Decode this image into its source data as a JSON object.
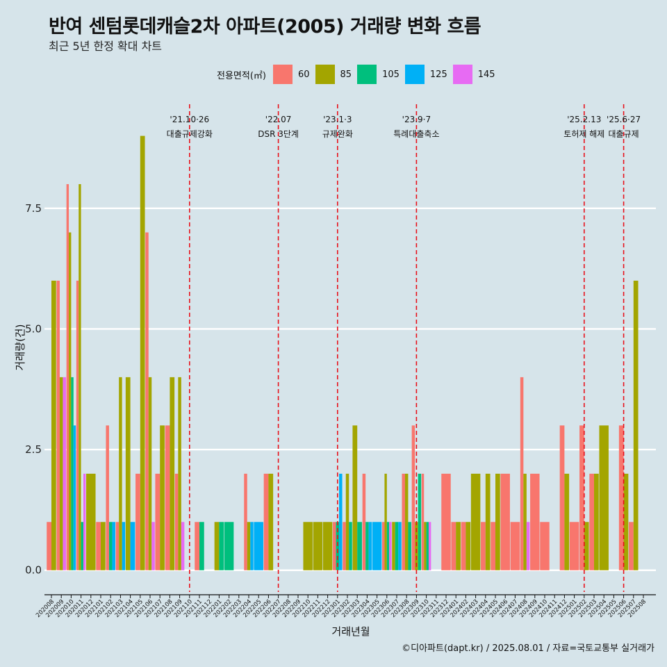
{
  "title": "반여 센텀롯데캐슬2차 아파트(2005) 거래량 변화 흐름",
  "subtitle": "최근 5년 한정 확대 차트",
  "caption": "©디아파트(dapt.kr) / 2025.08.01 / 자료=국토교통부 실거래가",
  "legend": {
    "title": "전용면적(㎡)",
    "items": [
      {
        "label": "60",
        "color": "#f8766d"
      },
      {
        "label": "85",
        "color": "#a3a500"
      },
      {
        "label": "105",
        "color": "#00bf7d"
      },
      {
        "label": "125",
        "color": "#00b0f6"
      },
      {
        "label": "145",
        "color": "#e76bf3"
      }
    ]
  },
  "chart_data": {
    "type": "bar",
    "xlabel": "거래년월",
    "ylabel": "거래량(건)",
    "ylim": [
      -0.45,
      9.8
    ],
    "yticks": [
      0.0,
      2.5,
      5.0,
      7.5
    ],
    "yticklabels": [
      "0.0",
      "2.5",
      "5.0",
      "7.5"
    ],
    "grid": true,
    "categories": [
      "202008",
      "202009",
      "202010",
      "202011",
      "202012",
      "202101",
      "202102",
      "202103",
      "202104",
      "202105",
      "202106",
      "202107",
      "202108",
      "202109",
      "202110",
      "202111",
      "202112",
      "202201",
      "202202",
      "202203",
      "202204",
      "202205",
      "202206",
      "202207",
      "202208",
      "202209",
      "202210",
      "202211",
      "202212",
      "202301",
      "202302",
      "202303",
      "202304",
      "202305",
      "202306",
      "202307",
      "202308",
      "202309",
      "202310",
      "202311",
      "202312",
      "202401",
      "202402",
      "202403",
      "202404",
      "202405",
      "202406",
      "202407",
      "202408",
      "202409",
      "202410",
      "202411",
      "202412",
      "202501",
      "202502",
      "202503",
      "202504",
      "202505",
      "202506",
      "202507",
      "202508"
    ],
    "series": [
      {
        "name": "60",
        "color": "#f8766d",
        "values": [
          1,
          6,
          8,
          6,
          0,
          1,
          3,
          1,
          0,
          2,
          7,
          2,
          3,
          2,
          0,
          1,
          0,
          0,
          0,
          0,
          2,
          0,
          2,
          0,
          0,
          0,
          0,
          0,
          0,
          1,
          1,
          0,
          2,
          0,
          1,
          0,
          2,
          3,
          2,
          0,
          2,
          1,
          1,
          0,
          1,
          1,
          2,
          1,
          4,
          2,
          1,
          0,
          3,
          1,
          3,
          2,
          0,
          0,
          3,
          1,
          0
        ]
      },
      {
        "name": "85",
        "color": "#a3a500",
        "values": [
          6,
          4,
          7,
          8,
          2,
          1,
          0,
          4,
          4,
          9,
          4,
          3,
          4,
          4,
          0,
          0,
          0,
          1,
          0,
          0,
          1,
          0,
          2,
          0,
          0,
          0,
          1,
          1,
          1,
          0,
          2,
          3,
          0,
          0,
          2,
          1,
          2,
          1,
          1,
          0,
          0,
          1,
          1,
          2,
          2,
          2,
          0,
          0,
          2,
          0,
          0,
          0,
          2,
          0,
          1,
          2,
          3,
          0,
          2,
          6,
          0
        ]
      },
      {
        "name": "105",
        "color": "#00bf7d",
        "values": [
          0,
          0,
          4,
          1,
          0,
          0,
          1,
          0,
          0,
          0,
          0,
          0,
          0,
          0,
          0,
          1,
          0,
          1,
          1,
          0,
          0,
          0,
          0,
          0,
          0,
          0,
          0,
          0,
          0,
          1,
          1,
          1,
          1,
          0,
          1,
          1,
          1,
          2,
          1,
          0,
          0,
          0,
          0,
          0,
          0,
          0,
          0,
          0,
          0,
          0,
          0,
          0,
          0,
          0,
          0,
          0,
          0,
          0,
          0,
          0,
          0
        ]
      },
      {
        "name": "125",
        "color": "#00b0f6",
        "values": [
          0,
          0,
          3,
          0,
          0,
          0,
          1,
          1,
          1,
          0,
          0,
          0,
          0,
          0,
          0,
          0,
          0,
          0,
          0,
          0,
          1,
          1,
          0,
          0,
          0,
          0,
          0,
          0,
          0,
          2,
          0,
          0,
          1,
          1,
          0,
          1,
          0,
          0,
          0,
          0,
          0,
          0,
          0,
          0,
          0,
          0,
          0,
          0,
          0,
          0,
          0,
          0,
          0,
          0,
          0,
          0,
          0,
          0,
          0,
          0,
          0
        ]
      },
      {
        "name": "145",
        "color": "#e76bf3",
        "values": [
          0,
          4,
          0,
          2,
          0,
          0,
          0,
          0,
          0,
          0,
          1,
          0,
          0,
          1,
          0,
          0,
          0,
          0,
          0,
          0,
          0,
          0,
          0,
          0,
          0,
          0,
          0,
          0,
          0,
          0,
          0,
          0,
          0,
          0,
          1,
          0,
          0,
          0,
          1,
          0,
          0,
          0,
          0,
          0,
          0,
          0,
          0,
          0,
          1,
          0,
          0,
          0,
          0,
          0,
          0,
          0,
          0,
          0,
          0,
          0,
          0
        ]
      }
    ],
    "events": [
      {
        "x": 14.0,
        "date": "'21.10·26",
        "label": "대출규제강화"
      },
      {
        "x": 23.0,
        "date": "'22.07",
        "label": "DSR 3단계"
      },
      {
        "x": 29.0,
        "date": "'23.1·3",
        "label": "규제완화"
      },
      {
        "x": 37.0,
        "date": "'23.9·7",
        "label": "특례대출축소"
      },
      {
        "x": 54.0,
        "date": "'25.2.13",
        "label": "토허제 해제"
      },
      {
        "x": 58.0,
        "date": "'25.6·27",
        "label": "대출규제"
      }
    ]
  }
}
